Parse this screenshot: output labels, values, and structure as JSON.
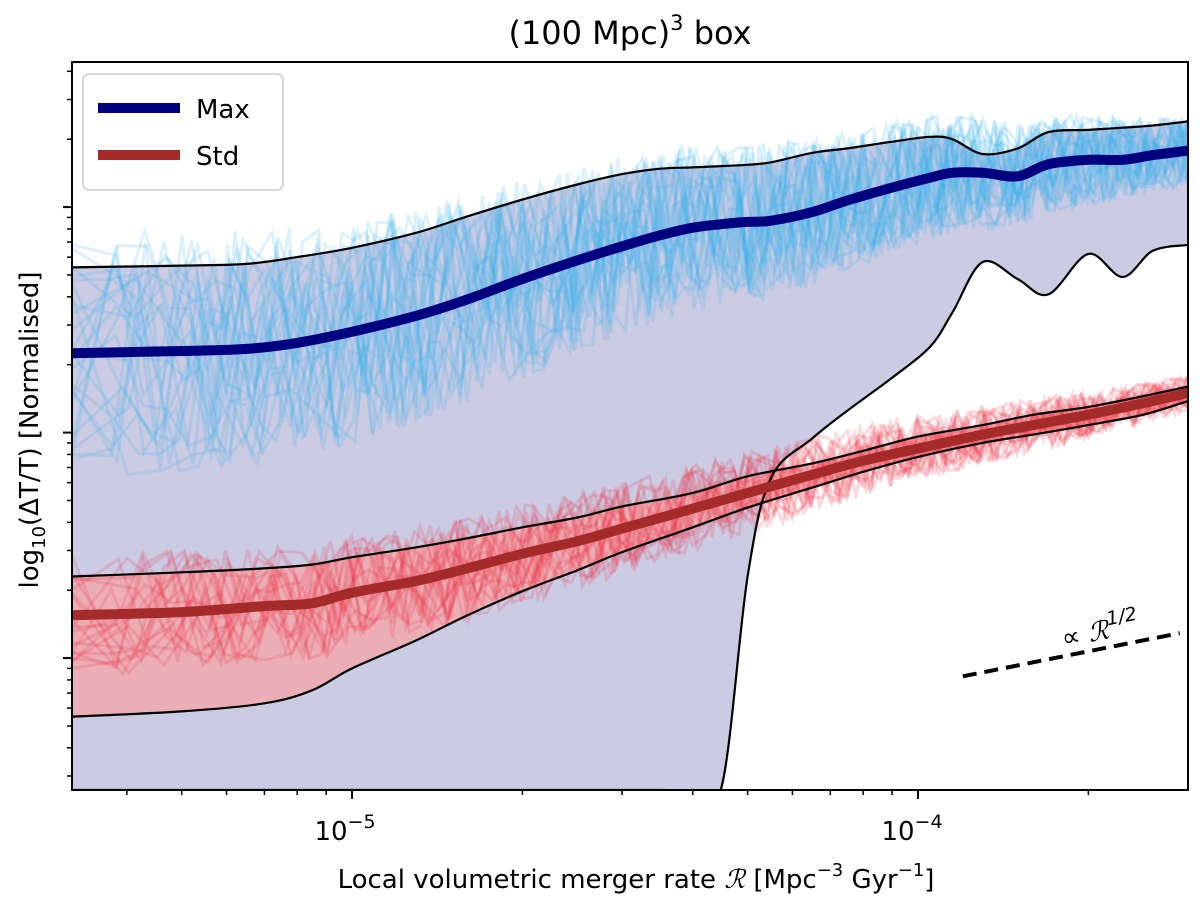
{
  "chart_data": {
    "type": "line",
    "title": "(100 Mpc)",
    "title_sup": "3",
    "title_suffix": " box",
    "xlabel": "Local volumetric merger rate",
    "xlabel_symbol": "ℛ",
    "xlabel_units": "[Mpc",
    "xlabel_units_sup1": "−3",
    "xlabel_units_mid": " Gyr",
    "xlabel_units_sup2": "−1",
    "xlabel_units_end": "]",
    "ylabel_prefix": "log",
    "ylabel_sub": "10",
    "ylabel_main": "(ΔT/T) [Normalised]",
    "xscale": "log",
    "yscale": "log",
    "xlim": [
      3.2e-06,
      0.0003
    ],
    "ylim": [
      2.6e-05,
      0.044
    ],
    "xticks": [
      {
        "value": 1e-05,
        "base": "10",
        "exp": "−5"
      },
      {
        "value": 0.0001,
        "base": "10",
        "exp": "−4"
      }
    ],
    "legend": {
      "location": "upper-left",
      "entries": [
        {
          "label": "Max",
          "color": "#000080"
        },
        {
          "label": "Std",
          "color": "#a52a2a"
        }
      ]
    },
    "annotation": {
      "prefix": "∝ ",
      "symbol": "ℛ",
      "sup": "1/2",
      "x": 0.00017,
      "y": 0.00012
    },
    "slope_line": {
      "x": [
        0.00012,
        0.00029
      ],
      "y": [
        8.3e-05,
        0.000129
      ],
      "style": "dashed",
      "color": "#000000"
    },
    "series": [
      {
        "name": "Max",
        "color": "#000080",
        "fill": "#c8c8e2",
        "x": [
          3.2e-06,
          5e-06,
          6.5e-06,
          8e-06,
          1e-05,
          1.3e-05,
          1.6e-05,
          2e-05,
          2.5e-05,
          3e-05,
          3.5e-05,
          4e-05,
          4.5e-05,
          5e-05,
          5.5e-05,
          6.5e-05,
          7.5e-05,
          9e-05,
          0.000105,
          0.000115,
          0.00013,
          0.00015,
          0.00017,
          0.0002,
          0.00023,
          0.00026,
          0.0003
        ],
        "values": [
          0.00225,
          0.0023,
          0.00235,
          0.0025,
          0.0028,
          0.0033,
          0.0039,
          0.0048,
          0.0058,
          0.0067,
          0.0075,
          0.0081,
          0.0084,
          0.0086,
          0.0087,
          0.0095,
          0.0107,
          0.0122,
          0.0135,
          0.0142,
          0.0142,
          0.0137,
          0.0155,
          0.0162,
          0.0162,
          0.017,
          0.0178
        ],
        "upper": [
          0.0054,
          0.0055,
          0.0056,
          0.006,
          0.0066,
          0.0077,
          0.0091,
          0.0108,
          0.0126,
          0.014,
          0.0148,
          0.015,
          0.0152,
          0.0154,
          0.0158,
          0.0174,
          0.0182,
          0.0195,
          0.0205,
          0.02,
          0.0172,
          0.0182,
          0.0215,
          0.022,
          0.0225,
          0.023,
          0.024
        ],
        "lower": [
          2.6e-05,
          2.6e-05,
          2.6e-05,
          2.6e-05,
          2.6e-05,
          2.6e-05,
          2.6e-05,
          2.6e-05,
          2.6e-05,
          2.6e-05,
          2.6e-05,
          2.6e-05,
          2.7e-05,
          0.00023,
          0.00063,
          0.00094,
          0.00125,
          0.00175,
          0.0024,
          0.0034,
          0.0057,
          0.0048,
          0.0041,
          0.0062,
          0.0049,
          0.0064,
          0.0068
        ]
      },
      {
        "name": "Std",
        "color": "#a52a2a",
        "fill": "#f2a9ae",
        "x": [
          3.2e-06,
          5e-06,
          7e-06,
          8.5e-06,
          1e-05,
          1.3e-05,
          1.6e-05,
          2e-05,
          2.5e-05,
          3e-05,
          4e-05,
          5e-05,
          6.5e-05,
          8e-05,
          0.0001,
          0.00013,
          0.00016,
          0.0002,
          0.00025,
          0.0003
        ],
        "values": [
          0.000155,
          0.00016,
          0.00017,
          0.000175,
          0.000195,
          0.00022,
          0.00025,
          0.00029,
          0.00033,
          0.000375,
          0.00046,
          0.00054,
          0.00065,
          0.00075,
          0.00085,
          0.00098,
          0.00108,
          0.0012,
          0.00135,
          0.0015
        ],
        "upper": [
          0.00023,
          0.00024,
          0.00025,
          0.00026,
          0.00028,
          0.00031,
          0.00034,
          0.00038,
          0.00042,
          0.00047,
          0.00054,
          0.00064,
          0.00073,
          0.00083,
          0.00096,
          0.00108,
          0.0012,
          0.0013,
          0.00145,
          0.0016
        ],
        "lower": [
          5.5e-05,
          5.8e-05,
          6.3e-05,
          7.2e-05,
          9e-05,
          0.00012,
          0.000155,
          0.000198,
          0.000245,
          0.000295,
          0.00038,
          0.000465,
          0.00057,
          0.00067,
          0.00078,
          0.0009,
          0.00098,
          0.00108,
          0.0012,
          0.00138
        ]
      }
    ]
  },
  "colors": {
    "max_noise": "#36b4ee",
    "std_noise": "#ee3344",
    "axes": "#000000"
  }
}
